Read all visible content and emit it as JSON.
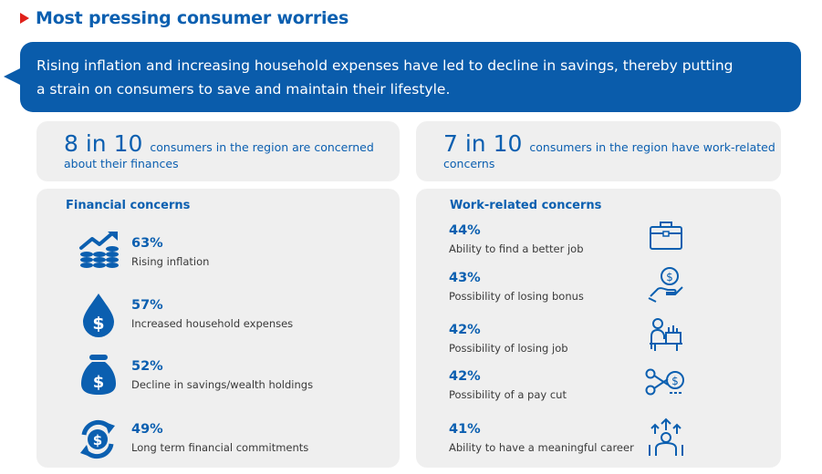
{
  "title": "Most pressing consumer worries",
  "banner": {
    "line1": "Rising inflation and increasing household expenses have led to decline in savings, thereby putting",
    "line2": "a strain on consumers to save and maintain their lifestyle."
  },
  "finance_stat": {
    "big": "8 in 10",
    "text_line1": "consumers in the region are concerned",
    "text_line2": "about their finances"
  },
  "work_stat": {
    "big": "7 in 10",
    "text_line1": "consumers in the region have work-related",
    "text_line2": "concerns"
  },
  "financial": {
    "heading": "Financial concerns",
    "items": [
      {
        "pct": "63%",
        "label": "Rising inflation",
        "icon": "inflation-chart-coins-icon"
      },
      {
        "pct": "57%",
        "label": "Increased household expenses",
        "icon": "dollar-drop-icon"
      },
      {
        "pct": "52%",
        "label": "Decline in savings/wealth holdings",
        "icon": "money-bag-icon"
      },
      {
        "pct": "49%",
        "label": "Long term financial commitments",
        "icon": "dollar-cycle-icon"
      }
    ]
  },
  "work": {
    "heading": "Work-related concerns",
    "items": [
      {
        "pct": "44%",
        "label": "Ability to find a better job",
        "icon": "briefcase-icon"
      },
      {
        "pct": "43%",
        "label": "Possibility of losing bonus",
        "icon": "hand-coin-icon"
      },
      {
        "pct": "42%",
        "label": "Possibility of losing job",
        "icon": "person-desk-box-icon"
      },
      {
        "pct": "42%",
        "label": "Possibility of a pay cut",
        "icon": "scissors-coin-icon"
      },
      {
        "pct": "41%",
        "label": "Ability to have a meaningful career",
        "icon": "career-growth-icon"
      }
    ]
  },
  "colors": {
    "accent": "#0b5fb0",
    "banner": "#0a5cab",
    "marker": "#e0211b",
    "panel": "#efefef"
  }
}
